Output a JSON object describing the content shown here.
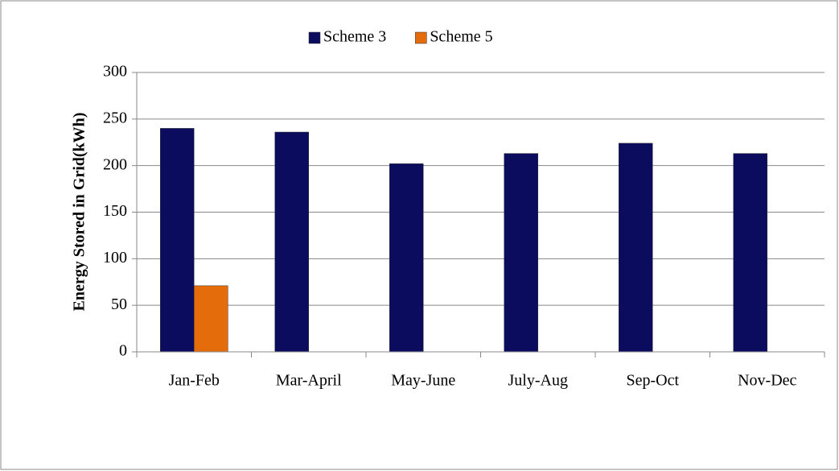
{
  "chart_data": {
    "type": "bar",
    "categories": [
      "Jan-Feb",
      "Mar-April",
      "May-June",
      "July-Aug",
      "Sep-Oct",
      "Nov-Dec"
    ],
    "series": [
      {
        "name": "Scheme 3",
        "color": "#0c0c5e",
        "values": [
          240,
          236,
          202,
          213,
          224,
          213
        ]
      },
      {
        "name": "Scheme 5",
        "color": "#e46c0a",
        "values": [
          71,
          0,
          0,
          0,
          0,
          0
        ]
      }
    ],
    "ylabel": "Energy Stored in Grid(kWh)",
    "ylim": [
      0,
      300
    ],
    "yticks": [
      0,
      50,
      100,
      150,
      200,
      250,
      300
    ],
    "grid": true,
    "legend": "top"
  }
}
